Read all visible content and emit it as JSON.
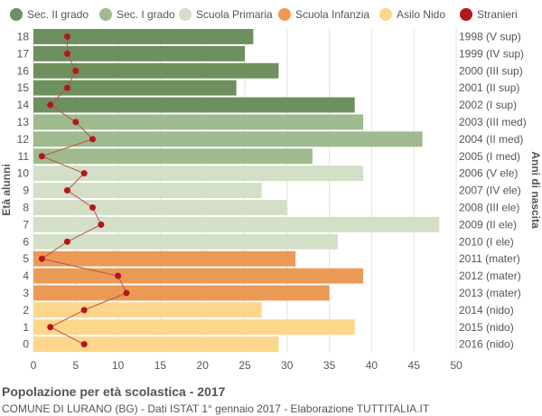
{
  "chart_data": {
    "type": "bar",
    "orientation": "horizontal",
    "title": "Popolazione per età scolastica - 2017",
    "subtitle": "COMUNE DI LURANO (BG) - Dati ISTAT 1° gennaio 2017 - Elaborazione TUTTITALIA.IT",
    "ylabel": "Età alunni",
    "ylabel_right": "Anni di nascita",
    "xlim": [
      0,
      50
    ],
    "xticks": [
      0,
      5,
      10,
      15,
      20,
      25,
      30,
      35,
      40,
      45,
      50
    ],
    "grid": true,
    "legend_position": "top",
    "legend": [
      {
        "label": "Sec. II grado",
        "color": "#6e8f5e"
      },
      {
        "label": "Sec. I grado",
        "color": "#9fba8e"
      },
      {
        "label": "Scuola Primaria",
        "color": "#d3dfc6"
      },
      {
        "label": "Scuola Infanzia",
        "color": "#eb9a55"
      },
      {
        "label": "Asilo Nido",
        "color": "#fcd68a"
      },
      {
        "label": "Stranieri",
        "color": "#b4161b"
      }
    ],
    "ages": [
      18,
      17,
      16,
      15,
      14,
      13,
      12,
      11,
      10,
      9,
      8,
      7,
      6,
      5,
      4,
      3,
      2,
      1,
      0
    ],
    "birth_years": [
      "1998 (V sup)",
      "1999 (IV sup)",
      "2000 (III sup)",
      "2001 (II sup)",
      "2002 (I sup)",
      "2003 (III med)",
      "2004 (II med)",
      "2005 (I med)",
      "2006 (V ele)",
      "2007 (IV ele)",
      "2008 (III ele)",
      "2009 (II ele)",
      "2010 (I ele)",
      "2011 (mater)",
      "2012 (mater)",
      "2013 (mater)",
      "2014 (nido)",
      "2015 (nido)",
      "2016 (nido)"
    ],
    "categories": [
      "Sec. II grado",
      "Sec. II grado",
      "Sec. II grado",
      "Sec. II grado",
      "Sec. II grado",
      "Sec. I grado",
      "Sec. I grado",
      "Sec. I grado",
      "Scuola Primaria",
      "Scuola Primaria",
      "Scuola Primaria",
      "Scuola Primaria",
      "Scuola Primaria",
      "Scuola Infanzia",
      "Scuola Infanzia",
      "Scuola Infanzia",
      "Asilo Nido",
      "Asilo Nido",
      "Asilo Nido"
    ],
    "values": [
      26,
      25,
      29,
      24,
      38,
      39,
      46,
      33,
      39,
      27,
      30,
      48,
      36,
      31,
      39,
      35,
      27,
      38,
      29
    ],
    "stranieri": [
      4,
      4,
      5,
      4,
      2,
      5,
      7,
      1,
      6,
      4,
      7,
      8,
      4,
      1,
      10,
      11,
      6,
      2,
      6
    ]
  }
}
